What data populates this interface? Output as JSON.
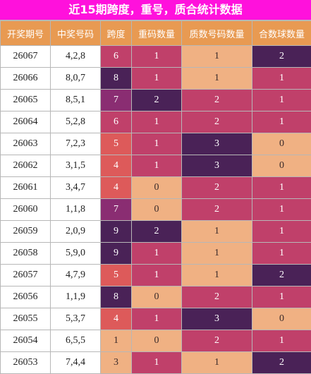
{
  "title": "近15期跨度，重号，质合统计数据",
  "colors": {
    "title_bg": "#ff11dc",
    "header_bg": "#e89a52",
    "palette": {
      "peach": "#f0b183",
      "salmon": "#dd5a5a",
      "rose": "#c0406a",
      "plum": "#8a2d72",
      "deep_purple": "#4a2257"
    }
  },
  "headers": [
    "开奖期号",
    "中奖号码",
    "跨度",
    "重码数量",
    "质数号码数量",
    "合数球数量"
  ],
  "rows": [
    {
      "issue": "26067",
      "numbers": "4,2,8",
      "span": "6",
      "repeat": "1",
      "prime": "1",
      "composite": "2"
    },
    {
      "issue": "26066",
      "numbers": "8,0,7",
      "span": "8",
      "repeat": "1",
      "prime": "1",
      "composite": "1"
    },
    {
      "issue": "26065",
      "numbers": "8,5,1",
      "span": "7",
      "repeat": "2",
      "prime": "2",
      "composite": "1"
    },
    {
      "issue": "26064",
      "numbers": "5,2,8",
      "span": "6",
      "repeat": "1",
      "prime": "2",
      "composite": "1"
    },
    {
      "issue": "26063",
      "numbers": "7,2,3",
      "span": "5",
      "repeat": "1",
      "prime": "3",
      "composite": "0"
    },
    {
      "issue": "26062",
      "numbers": "3,1,5",
      "span": "4",
      "repeat": "1",
      "prime": "3",
      "composite": "0"
    },
    {
      "issue": "26061",
      "numbers": "3,4,7",
      "span": "4",
      "repeat": "0",
      "prime": "2",
      "composite": "1"
    },
    {
      "issue": "26060",
      "numbers": "1,1,8",
      "span": "7",
      "repeat": "0",
      "prime": "2",
      "composite": "1"
    },
    {
      "issue": "26059",
      "numbers": "2,0,9",
      "span": "9",
      "repeat": "2",
      "prime": "1",
      "composite": "1"
    },
    {
      "issue": "26058",
      "numbers": "5,9,0",
      "span": "9",
      "repeat": "1",
      "prime": "1",
      "composite": "1"
    },
    {
      "issue": "26057",
      "numbers": "4,7,9",
      "span": "5",
      "repeat": "1",
      "prime": "1",
      "composite": "2"
    },
    {
      "issue": "26056",
      "numbers": "1,1,9",
      "span": "8",
      "repeat": "0",
      "prime": "2",
      "composite": "1"
    },
    {
      "issue": "26055",
      "numbers": "5,3,7",
      "span": "4",
      "repeat": "1",
      "prime": "3",
      "composite": "0"
    },
    {
      "issue": "26054",
      "numbers": "6,5,5",
      "span": "1",
      "repeat": "0",
      "prime": "2",
      "composite": "1"
    },
    {
      "issue": "26053",
      "numbers": "7,4,4",
      "span": "3",
      "repeat": "1",
      "prime": "1",
      "composite": "2"
    }
  ]
}
